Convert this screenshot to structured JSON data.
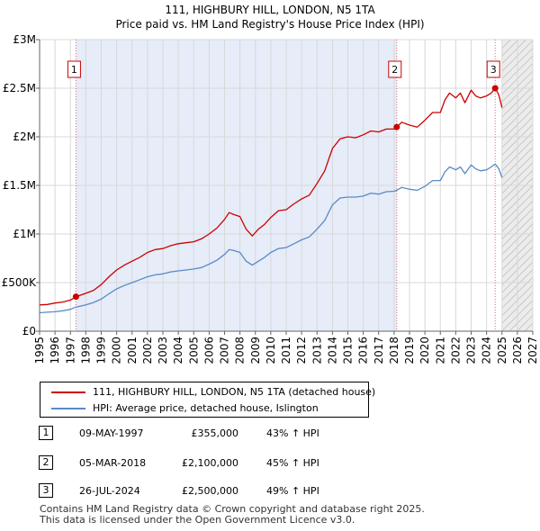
{
  "chart_data": {
    "type": "line",
    "title": "111, HIGHBURY HILL, LONDON, N5 1TA",
    "subtitle": "Price paid vs. HM Land Registry's House Price Index (HPI)",
    "xlabel": "",
    "ylabel": "",
    "xlim": [
      1995,
      2027
    ],
    "ylim": [
      0,
      3000000
    ],
    "x_ticks": [
      "1995",
      "1996",
      "1997",
      "1998",
      "1999",
      "2000",
      "2001",
      "2002",
      "2003",
      "2004",
      "2005",
      "2006",
      "2007",
      "2008",
      "2009",
      "2010",
      "2011",
      "2012",
      "2013",
      "2014",
      "2015",
      "2016",
      "2017",
      "2018",
      "2019",
      "2020",
      "2021",
      "2022",
      "2023",
      "2024",
      "2025",
      "2026",
      "2027"
    ],
    "y_ticks": [
      {
        "value": 0,
        "label": "£0"
      },
      {
        "value": 500000,
        "label": "£500K"
      },
      {
        "value": 1000000,
        "label": "£1M"
      },
      {
        "value": 1500000,
        "label": "£1.5M"
      },
      {
        "value": 2000000,
        "label": "£2M"
      },
      {
        "value": 2500000,
        "label": "£2.5M"
      },
      {
        "value": 3000000,
        "label": "£3M"
      }
    ],
    "grid": true,
    "series": [
      {
        "name": "111, HIGHBURY HILL, LONDON, N5 1TA (detached house)",
        "color": "#cc0000",
        "x": [
          1995.0,
          1995.5,
          1996.0,
          1996.5,
          1997.0,
          1997.36,
          1998.0,
          1998.5,
          1999.0,
          1999.5,
          2000.0,
          2000.5,
          2001.0,
          2001.5,
          2002.0,
          2002.5,
          2003.0,
          2003.5,
          2004.0,
          2004.5,
          2005.0,
          2005.5,
          2006.0,
          2006.5,
          2007.0,
          2007.3,
          2007.6,
          2008.0,
          2008.4,
          2008.8,
          2009.2,
          2009.6,
          2010.0,
          2010.5,
          2011.0,
          2011.5,
          2012.0,
          2012.5,
          2013.0,
          2013.5,
          2014.0,
          2014.5,
          2015.0,
          2015.5,
          2016.0,
          2016.5,
          2017.0,
          2017.5,
          2018.0,
          2018.17,
          2018.5,
          2019.0,
          2019.5,
          2020.0,
          2020.5,
          2021.0,
          2021.3,
          2021.6,
          2022.0,
          2022.3,
          2022.6,
          2023.0,
          2023.3,
          2023.6,
          2024.0,
          2024.3,
          2024.56,
          2024.8,
          2025.0
        ],
        "values": [
          270000,
          275000,
          290000,
          300000,
          320000,
          355000,
          390000,
          420000,
          480000,
          560000,
          630000,
          680000,
          720000,
          760000,
          810000,
          840000,
          850000,
          880000,
          900000,
          910000,
          920000,
          950000,
          1000000,
          1060000,
          1150000,
          1220000,
          1200000,
          1180000,
          1050000,
          980000,
          1050000,
          1100000,
          1170000,
          1240000,
          1250000,
          1310000,
          1360000,
          1400000,
          1520000,
          1650000,
          1880000,
          1980000,
          2000000,
          1990000,
          2020000,
          2060000,
          2050000,
          2080000,
          2080000,
          2100000,
          2150000,
          2120000,
          2100000,
          2170000,
          2250000,
          2250000,
          2380000,
          2450000,
          2400000,
          2450000,
          2350000,
          2480000,
          2420000,
          2400000,
          2420000,
          2450000,
          2500000,
          2430000,
          2300000
        ]
      },
      {
        "name": "HPI: Average price, detached house, Islington",
        "color": "#5a8ac6",
        "x": [
          1995.0,
          1995.5,
          1996.0,
          1996.5,
          1997.0,
          1997.36,
          1998.0,
          1998.5,
          1999.0,
          1999.5,
          2000.0,
          2000.5,
          2001.0,
          2001.5,
          2002.0,
          2002.5,
          2003.0,
          2003.5,
          2004.0,
          2004.5,
          2005.0,
          2005.5,
          2006.0,
          2006.5,
          2007.0,
          2007.3,
          2007.6,
          2008.0,
          2008.4,
          2008.8,
          2009.2,
          2009.6,
          2010.0,
          2010.5,
          2011.0,
          2011.5,
          2012.0,
          2012.5,
          2013.0,
          2013.5,
          2014.0,
          2014.5,
          2015.0,
          2015.5,
          2016.0,
          2016.5,
          2017.0,
          2017.5,
          2018.0,
          2018.17,
          2018.5,
          2019.0,
          2019.5,
          2020.0,
          2020.5,
          2021.0,
          2021.3,
          2021.6,
          2022.0,
          2022.3,
          2022.6,
          2023.0,
          2023.3,
          2023.6,
          2024.0,
          2024.3,
          2024.56,
          2024.8,
          2025.0
        ],
        "values": [
          190000,
          195000,
          200000,
          210000,
          225000,
          248000,
          270000,
          295000,
          330000,
          385000,
          435000,
          470000,
          500000,
          530000,
          560000,
          580000,
          590000,
          610000,
          620000,
          630000,
          640000,
          655000,
          690000,
          730000,
          790000,
          840000,
          830000,
          810000,
          720000,
          680000,
          720000,
          760000,
          810000,
          850000,
          860000,
          900000,
          940000,
          970000,
          1050000,
          1140000,
          1300000,
          1370000,
          1380000,
          1380000,
          1390000,
          1420000,
          1410000,
          1435000,
          1440000,
          1450000,
          1480000,
          1460000,
          1450000,
          1490000,
          1550000,
          1550000,
          1640000,
          1690000,
          1660000,
          1690000,
          1620000,
          1710000,
          1670000,
          1650000,
          1660000,
          1690000,
          1720000,
          1670000,
          1580000
        ]
      }
    ],
    "transactions": [
      {
        "label": "1",
        "x": 1997.36,
        "value": 355000,
        "date": "09-MAY-1997",
        "price": "£355,000",
        "hpi": "43% ↑ HPI"
      },
      {
        "label": "2",
        "x": 2018.17,
        "value": 2100000,
        "date": "05-MAR-2018",
        "price": "£2,100,000",
        "hpi": "45% ↑ HPI"
      },
      {
        "label": "3",
        "x": 2024.56,
        "value": 2500000,
        "date": "26-JUL-2024",
        "price": "£2,500,000",
        "hpi": "49% ↑ HPI"
      }
    ],
    "shaded_ranges": [
      {
        "from": 1997.36,
        "to": 2018.17,
        "color": "#e6ecf8"
      },
      {
        "from": 2025.0,
        "to": 2027,
        "color": "#ececec",
        "hatched": true
      }
    ]
  },
  "footer": {
    "line1": "Contains HM Land Registry data © Crown copyright and database right 2025.",
    "line2": "This data is licensed under the Open Government Licence v3.0."
  }
}
